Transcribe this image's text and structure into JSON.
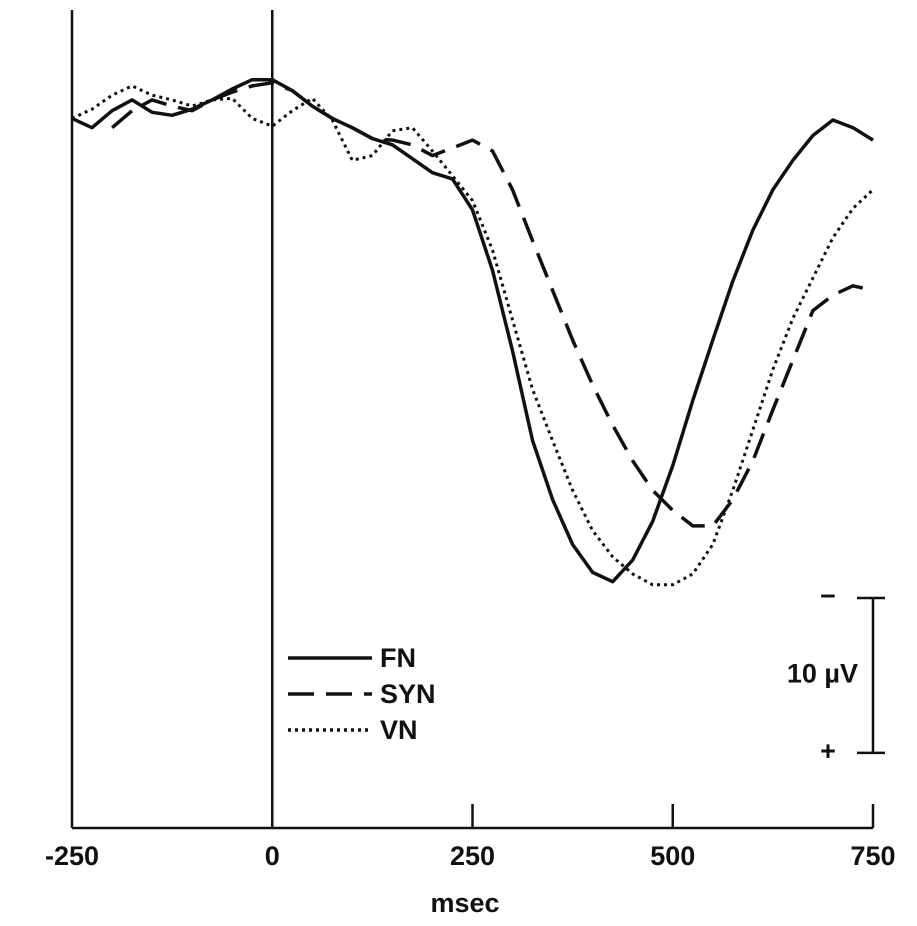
{
  "chart_data": {
    "type": "line",
    "xlabel": "msec",
    "x": [
      -250,
      -225,
      -200,
      -175,
      -150,
      -125,
      -100,
      -75,
      -50,
      -25,
      0,
      25,
      50,
      75,
      100,
      125,
      150,
      175,
      200,
      225,
      250,
      275,
      300,
      325,
      350,
      375,
      400,
      425,
      450,
      475,
      500,
      525,
      550,
      575,
      600,
      625,
      650,
      675,
      700,
      725,
      750
    ],
    "series": [
      {
        "name": "FN",
        "color": "#111111",
        "dash": "solid",
        "values": [
          0,
          0.6,
          -0.5,
          -1.2,
          -0.4,
          -0.2,
          -0.6,
          -1.2,
          -1.9,
          -2.5,
          -2.5,
          -1.8,
          -0.8,
          0,
          0.6,
          1.3,
          1.7,
          2.6,
          3.5,
          3.9,
          5.9,
          9.8,
          15.0,
          20.8,
          24.6,
          27.5,
          29.3,
          29.9,
          28.5,
          26.0,
          22.4,
          18.2,
          14.3,
          10.5,
          7.2,
          4.6,
          2.7,
          1.1,
          0.1,
          0.6,
          1.4
        ]
      },
      {
        "name": "SYN",
        "color": "#111111",
        "dash": "dashed",
        "values": [
          null,
          null,
          0.6,
          -0.5,
          -1.2,
          -0.8,
          -0.5,
          -1.2,
          -1.7,
          -2.1,
          -2.3,
          -1.8,
          -0.8,
          0,
          0.6,
          1.3,
          1.4,
          1.7,
          2.4,
          1.9,
          1.4,
          2.1,
          4.6,
          7.9,
          11.1,
          14.3,
          17.2,
          19.8,
          22.1,
          24.0,
          25.3,
          26.3,
          26.3,
          24.6,
          22.1,
          18.8,
          15.6,
          12.4,
          11.4,
          10.8,
          11.1
        ]
      },
      {
        "name": "VN",
        "color": "#111111",
        "dash": "dotted",
        "values": [
          0,
          -0.6,
          -1.5,
          -2.1,
          -1.5,
          -1.2,
          -0.8,
          -1.2,
          -1.3,
          0,
          0.5,
          -0.5,
          -1.3,
          0.1,
          2.7,
          2.4,
          0.8,
          0.6,
          2.1,
          3.7,
          5.3,
          8.5,
          13.0,
          17.5,
          20.8,
          24.0,
          26.6,
          28.3,
          29.4,
          30.1,
          30.1,
          29.4,
          27.5,
          24.0,
          20.1,
          16.2,
          12.9,
          10.3,
          7.7,
          5.8,
          4.6
        ]
      }
    ],
    "xlim": [
      -250,
      750
    ],
    "xticks": [
      -250,
      0,
      250,
      500,
      750
    ],
    "ylim": [
      -7,
      45.8
    ],
    "y_inverted": true,
    "scale_bar": {
      "value": 10,
      "label": "10 µV",
      "top_sign": "−",
      "bottom_sign": "+"
    },
    "legend": "center-left"
  }
}
